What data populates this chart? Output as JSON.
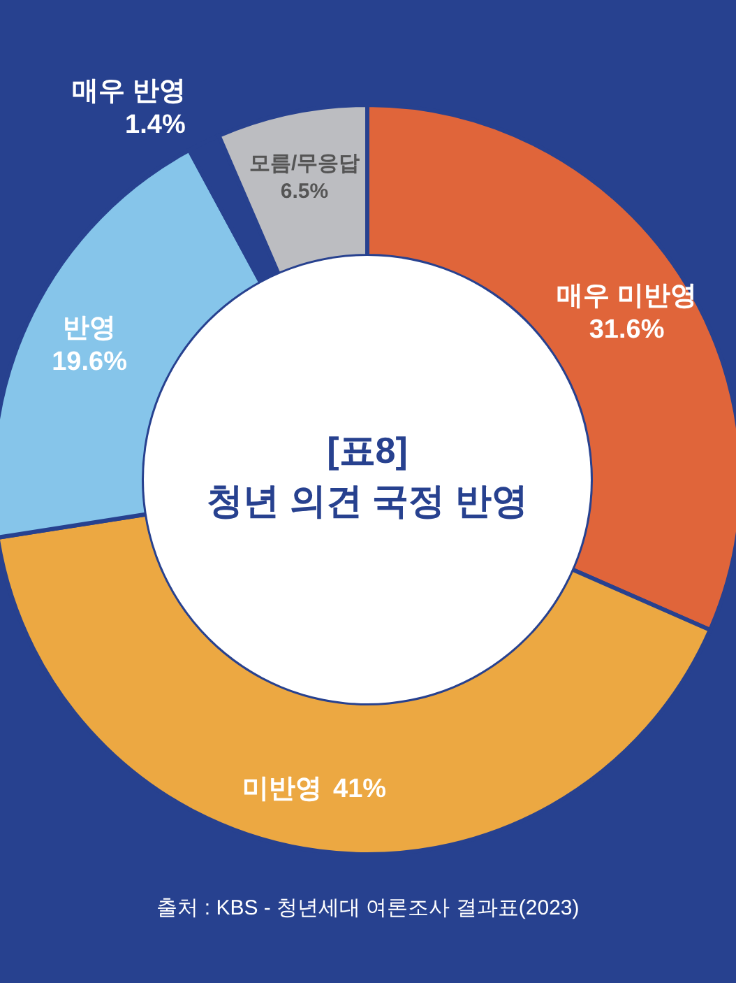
{
  "chart_data": {
    "type": "donut",
    "title": "[표8]",
    "subtitle": "청년 의견 국정 반영",
    "categories": [
      "매우 미반영",
      "미반영",
      "반영",
      "매우 반영",
      "모름/무응답"
    ],
    "values": [
      31.6,
      41,
      19.6,
      1.4,
      6.5
    ],
    "colors": [
      "#e0653a",
      "#eca842",
      "#86c5ea",
      "#27418f",
      "#bcbdc1"
    ],
    "value_labels": [
      "31.6%",
      "41%",
      "19.6%",
      "1.4%",
      "6.5%"
    ],
    "annotations": [
      "출처 : KBS - 청년세대 여론조사 결과표(2023)"
    ]
  }
}
